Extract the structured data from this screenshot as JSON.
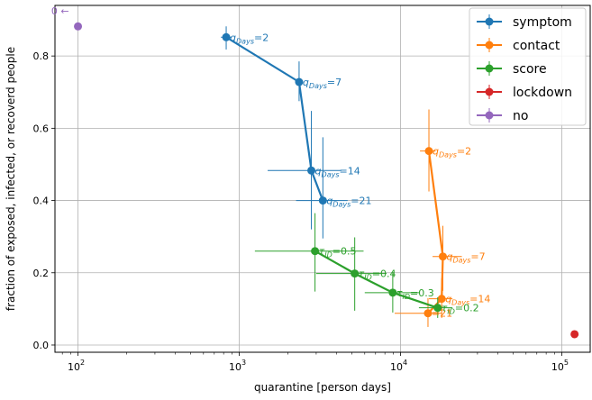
{
  "chart_data": {
    "type": "scatter",
    "xlabel": "quarantine [person days]",
    "ylabel": "fraction of exposed, infected, or recoverd people",
    "x_scale": "log",
    "xlim": [
      72,
      150000
    ],
    "ylim": [
      -0.02,
      0.94
    ],
    "xticks": [
      {
        "value": 100,
        "base": "10",
        "exp": "2"
      },
      {
        "value": 1000,
        "base": "10",
        "exp": "3"
      },
      {
        "value": 10000,
        "base": "10",
        "exp": "4"
      },
      {
        "value": 100000,
        "base": "10",
        "exp": "5"
      }
    ],
    "yticks": [
      {
        "value": 0.0,
        "label": "0.0"
      },
      {
        "value": 0.2,
        "label": "0.2"
      },
      {
        "value": 0.4,
        "label": "0.4"
      },
      {
        "value": 0.6,
        "label": "0.6"
      },
      {
        "value": 0.8,
        "label": "0.8"
      }
    ],
    "grid": true,
    "legend_position": "top-right",
    "series": [
      {
        "name": "symptom",
        "color": "#1f77b4",
        "points": [
          {
            "x": 830,
            "y": 0.852,
            "xerr_lo": 770,
            "xerr_hi": 900,
            "yerr_lo": 0.818,
            "yerr_hi": 0.882,
            "label": {
              "sym": "q",
              "sub": "Days",
              "val": "=2"
            }
          },
          {
            "x": 2350,
            "y": 0.728,
            "xerr_lo": 2250,
            "xerr_hi": 2450,
            "yerr_lo": 0.675,
            "yerr_hi": 0.785,
            "label": {
              "sym": "q",
              "sub": "Days",
              "val": "=7"
            }
          },
          {
            "x": 2800,
            "y": 0.483,
            "xerr_lo": 1500,
            "xerr_hi": 4300,
            "yerr_lo": 0.32,
            "yerr_hi": 0.648,
            "label": {
              "sym": "q",
              "sub": "Days",
              "val": "=14"
            }
          },
          {
            "x": 3300,
            "y": 0.4,
            "xerr_lo": 2250,
            "xerr_hi": 4700,
            "yerr_lo": 0.295,
            "yerr_hi": 0.575,
            "label": {
              "sym": "q",
              "sub": "Days",
              "val": "=21"
            }
          }
        ]
      },
      {
        "name": "contact",
        "color": "#ff7f0e",
        "points": [
          {
            "x": 15000,
            "y": 0.537,
            "xerr_lo": 13200,
            "xerr_hi": 16500,
            "yerr_lo": 0.425,
            "yerr_hi": 0.652,
            "label": {
              "sym": "q",
              "sub": "Days",
              "val": "=2"
            }
          },
          {
            "x": 18300,
            "y": 0.245,
            "xerr_lo": 15800,
            "xerr_hi": 24000,
            "yerr_lo": 0.15,
            "yerr_hi": 0.33,
            "label": {
              "sym": "q",
              "sub": "Days",
              "val": "=7"
            }
          },
          {
            "x": 18000,
            "y": 0.128,
            "xerr_lo": 15000,
            "xerr_hi": 21000,
            "yerr_lo": 0.075,
            "yerr_hi": 0.185,
            "label": {
              "sym": "q",
              "sub": "Days",
              "val": "=14"
            }
          },
          {
            "x": 14800,
            "y": 0.088,
            "xerr_lo": 9200,
            "xerr_hi": 18000,
            "yerr_lo": 0.05,
            "yerr_hi": 0.13,
            "label": {
              "sym": "",
              "sub": "",
              "val": "=21"
            }
          }
        ]
      },
      {
        "name": "score",
        "color": "#2ca02c",
        "points": [
          {
            "x": 2950,
            "y": 0.26,
            "xerr_lo": 1250,
            "xerr_hi": 5900,
            "yerr_lo": 0.148,
            "yerr_hi": 0.365,
            "label": {
              "sym": "τ",
              "sub": "ID",
              "val": "=0.5"
            }
          },
          {
            "x": 5200,
            "y": 0.198,
            "xerr_lo": 3000,
            "xerr_hi": 8200,
            "yerr_lo": 0.095,
            "yerr_hi": 0.298,
            "label": {
              "sym": "τ",
              "sub": "ID",
              "val": "=0.4"
            }
          },
          {
            "x": 8950,
            "y": 0.145,
            "xerr_lo": 6000,
            "xerr_hi": 13000,
            "yerr_lo": 0.09,
            "yerr_hi": 0.202,
            "label": {
              "sym": "τ",
              "sub": "ID",
              "val": "=0.3"
            }
          },
          {
            "x": 17000,
            "y": 0.103,
            "xerr_lo": 13000,
            "xerr_hi": 21000,
            "yerr_lo": 0.075,
            "yerr_hi": 0.132,
            "label": {
              "sym": "τ",
              "sub": "ID",
              "val": "=0.2"
            }
          }
        ]
      },
      {
        "name": "lockdown",
        "color": "#d62728",
        "points": [
          {
            "x": 120000,
            "y": 0.03
          }
        ]
      },
      {
        "name": "no",
        "color": "#9467bd",
        "points": [
          {
            "x": 100,
            "y": 0.882
          }
        ]
      }
    ],
    "annotations": [
      {
        "text": "0 ←",
        "x": 88,
        "y": 0.915,
        "color": "#9467bd"
      }
    ]
  }
}
